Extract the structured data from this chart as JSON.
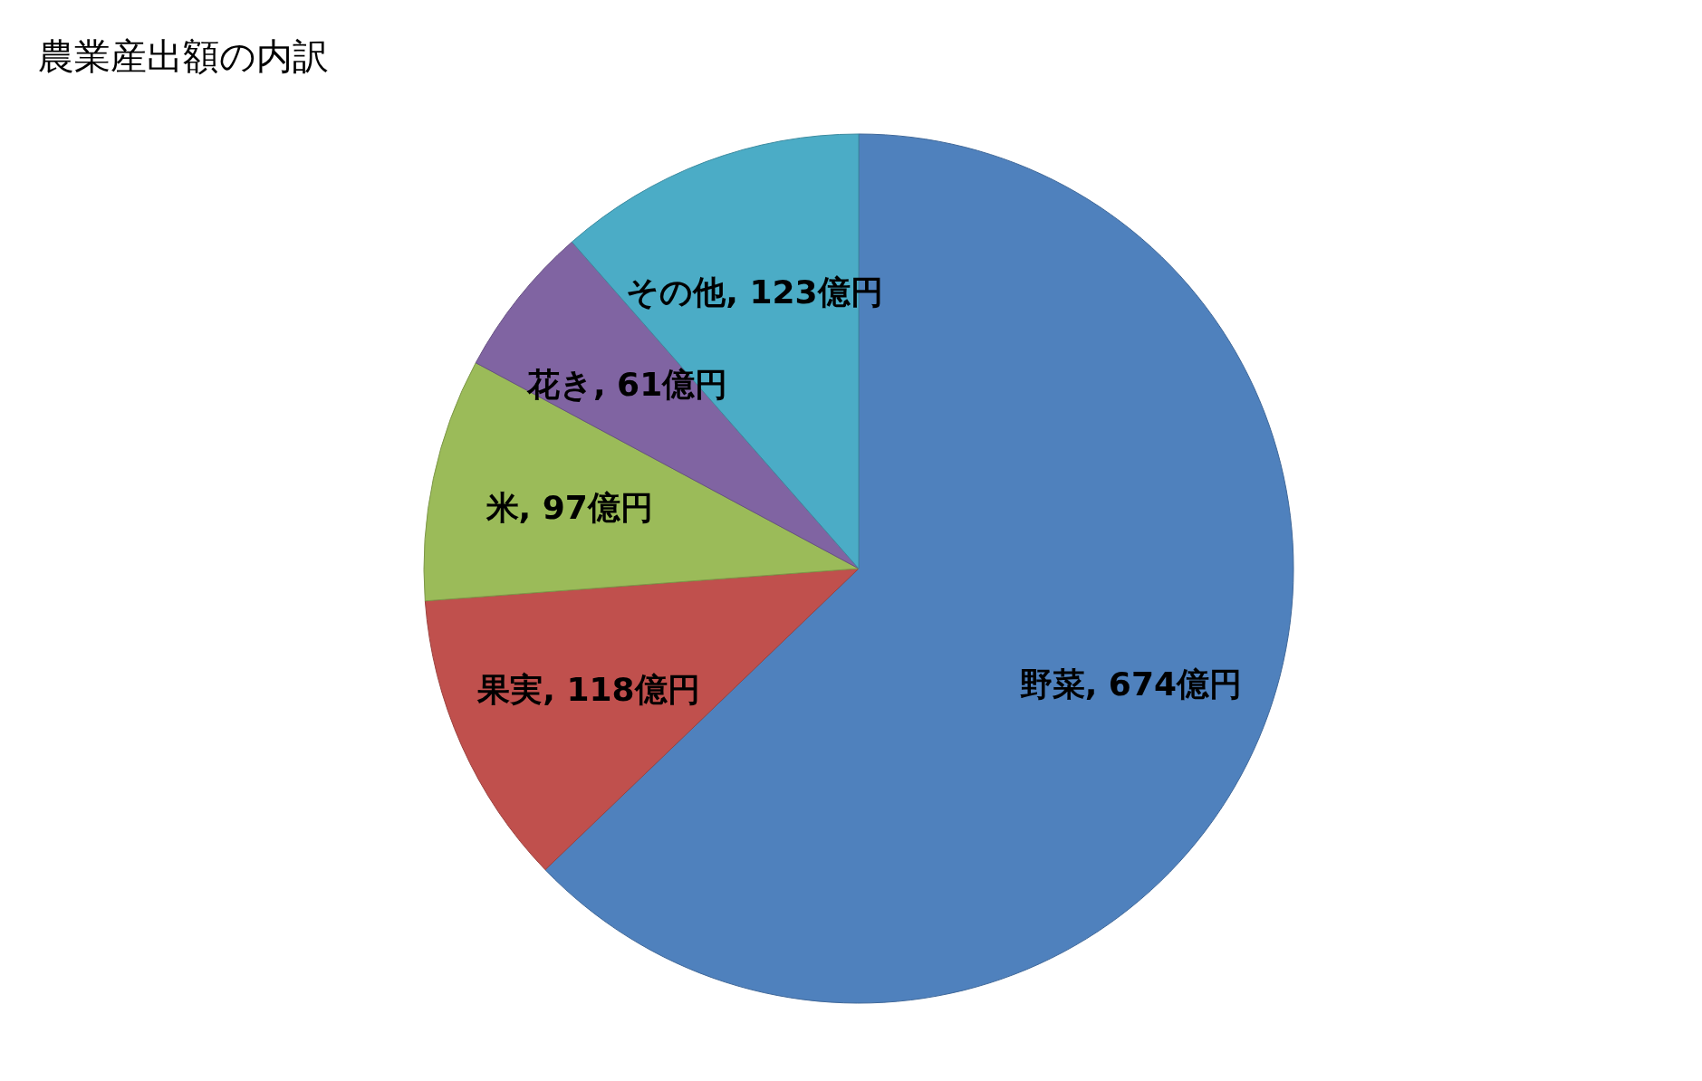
{
  "chart_data": {
    "type": "pie",
    "title": "農業産出額の内訳",
    "categories": [
      "野菜",
      "果実",
      "米",
      "花き",
      "その他"
    ],
    "values": [
      674,
      118,
      97,
      61,
      123
    ],
    "colors": [
      "#4f81bd",
      "#c0504d",
      "#9bbb59",
      "#8064a2",
      "#4bacc6"
    ],
    "value_labels": [
      ", 674億円",
      ", 118億円",
      ", 97億円",
      ", 61億円",
      ", 123億円"
    ]
  }
}
